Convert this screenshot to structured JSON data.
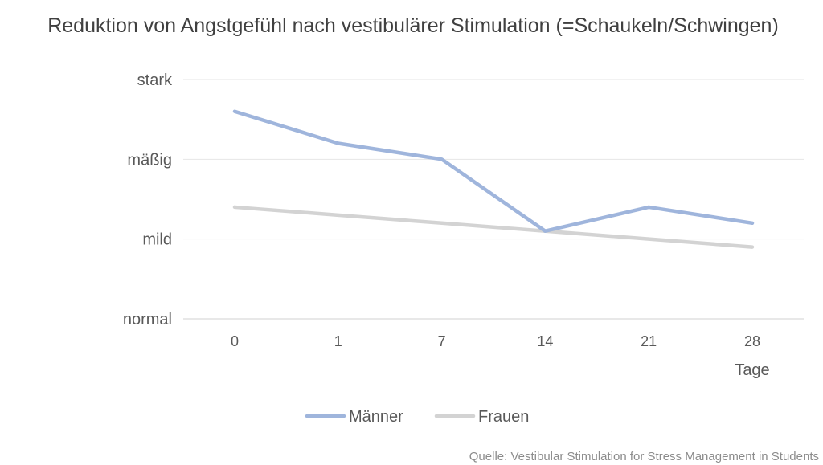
{
  "chart_data": {
    "type": "line",
    "title": "Reduktion von Angstgefühl nach vestibulärer Stimulation (=Schaukeln/Schwingen)",
    "xlabel": "Tage",
    "ylabel": "",
    "categories": [
      "0",
      "1",
      "7",
      "14",
      "21",
      "28"
    ],
    "y_levels": [
      "normal",
      "mild",
      "mäßig",
      "stark"
    ],
    "ylim": [
      0,
      3
    ],
    "series": [
      {
        "name": "Männer",
        "color": "#9fb5dc",
        "values": [
          2.6,
          2.2,
          2.0,
          1.1,
          1.4,
          1.2
        ]
      },
      {
        "name": "Frauen",
        "color": "#d3d3d3",
        "values": [
          1.4,
          1.3,
          1.2,
          1.1,
          1.0,
          0.9
        ]
      }
    ],
    "grid": true,
    "legend_position": "bottom-center",
    "source": "Quelle:  Vestibular Stimulation for Stress Management in Students"
  }
}
